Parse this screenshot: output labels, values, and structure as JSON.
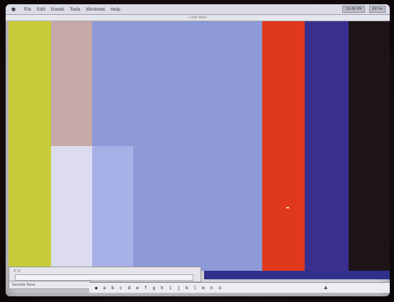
{
  "menubar": {
    "apple_icon": "apple-logo-icon",
    "items": [
      "File",
      "Edit",
      "Goods",
      "Tools",
      "Windows",
      "Help"
    ],
    "right_items": [
      "18:08 PM",
      "Off Hs"
    ]
  },
  "window": {
    "title": "Color Bars"
  },
  "color_bars": {
    "colors": [
      "#c9cc3a",
      "#c7a8a8",
      "#8e99d8",
      "#e0381a",
      "#3a2f8e",
      "#1e1418"
    ],
    "overlay_colors": [
      "#dcdcee",
      "#a8b0e8"
    ]
  },
  "bottom_panel": {
    "label": "x: y:",
    "field_value": ""
  },
  "status": {
    "text": "Sample Pane"
  },
  "toolbar": {
    "glyphs": [
      "●",
      "a",
      "b",
      "c",
      "d",
      "e",
      "f",
      "g",
      "h",
      "i",
      "j",
      "k",
      "l",
      "m",
      "n",
      "o"
    ],
    "end_icon": "arrow-icon"
  }
}
